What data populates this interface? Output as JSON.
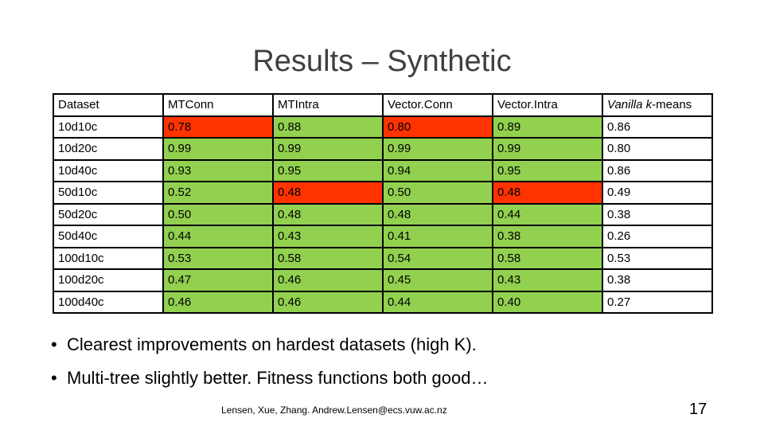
{
  "slide": {
    "title": "Results – Synthetic",
    "table": {
      "headers": [
        "Dataset",
        "MTConn",
        "MTIntra",
        "Vector.Conn",
        "Vector.Intra"
      ],
      "last_header_parts": [
        "Vanilla",
        " ",
        "k",
        "-means"
      ],
      "rows": [
        {
          "dataset": "10d10c",
          "cells": [
            {
              "value": "0.78",
              "color": "#ff3300"
            },
            {
              "value": "0.88",
              "color": "#92d050"
            },
            {
              "value": "0.80",
              "color": "#ff3300"
            },
            {
              "value": "0.89",
              "color": "#92d050"
            },
            {
              "value": "0.86",
              "color": "#ffffff"
            }
          ]
        },
        {
          "dataset": "10d20c",
          "cells": [
            {
              "value": "0.99",
              "color": "#92d050"
            },
            {
              "value": "0.99",
              "color": "#92d050"
            },
            {
              "value": "0.99",
              "color": "#92d050"
            },
            {
              "value": "0.99",
              "color": "#92d050"
            },
            {
              "value": "0.80",
              "color": "#ffffff"
            }
          ]
        },
        {
          "dataset": "10d40c",
          "cells": [
            {
              "value": "0.93",
              "color": "#92d050"
            },
            {
              "value": "0.95",
              "color": "#92d050"
            },
            {
              "value": "0.94",
              "color": "#92d050"
            },
            {
              "value": "0.95",
              "color": "#92d050"
            },
            {
              "value": "0.86",
              "color": "#ffffff"
            }
          ]
        },
        {
          "dataset": "50d10c",
          "cells": [
            {
              "value": "0.52",
              "color": "#92d050"
            },
            {
              "value": "0.48",
              "color": "#ff3300"
            },
            {
              "value": "0.50",
              "color": "#92d050"
            },
            {
              "value": "0.48",
              "color": "#ff3300"
            },
            {
              "value": "0.49",
              "color": "#ffffff"
            }
          ]
        },
        {
          "dataset": "50d20c",
          "cells": [
            {
              "value": "0.50",
              "color": "#92d050"
            },
            {
              "value": "0.48",
              "color": "#92d050"
            },
            {
              "value": "0.48",
              "color": "#92d050"
            },
            {
              "value": "0.44",
              "color": "#92d050"
            },
            {
              "value": "0.38",
              "color": "#ffffff"
            }
          ]
        },
        {
          "dataset": "50d40c",
          "cells": [
            {
              "value": "0.44",
              "color": "#92d050"
            },
            {
              "value": "0.43",
              "color": "#92d050"
            },
            {
              "value": "0.41",
              "color": "#92d050"
            },
            {
              "value": "0.38",
              "color": "#92d050"
            },
            {
              "value": "0.26",
              "color": "#ffffff"
            }
          ]
        },
        {
          "dataset": "100d10c",
          "cells": [
            {
              "value": "0.53",
              "color": "#92d050"
            },
            {
              "value": "0.58",
              "color": "#92d050"
            },
            {
              "value": "0.54",
              "color": "#92d050"
            },
            {
              "value": "0.58",
              "color": "#92d050"
            },
            {
              "value": "0.53",
              "color": "#ffffff"
            }
          ]
        },
        {
          "dataset": "100d20c",
          "cells": [
            {
              "value": "0.47",
              "color": "#92d050"
            },
            {
              "value": "0.46",
              "color": "#92d050"
            },
            {
              "value": "0.45",
              "color": "#92d050"
            },
            {
              "value": "0.43",
              "color": "#92d050"
            },
            {
              "value": "0.38",
              "color": "#ffffff"
            }
          ]
        },
        {
          "dataset": "100d40c",
          "cells": [
            {
              "value": "0.46",
              "color": "#92d050"
            },
            {
              "value": "0.46",
              "color": "#92d050"
            },
            {
              "value": "0.44",
              "color": "#92d050"
            },
            {
              "value": "0.40",
              "color": "#92d050"
            },
            {
              "value": "0.27",
              "color": "#ffffff"
            }
          ]
        }
      ]
    },
    "bullets": [
      "Clearest improvements on hardest datasets (high K).",
      "Multi-tree slightly better. Fitness functions both good…"
    ],
    "bullet_glyph": "•",
    "footer": "Lensen, Xue, Zhang. Andrew.Lensen@ecs.vuw.ac.nz",
    "page_number": "17"
  }
}
